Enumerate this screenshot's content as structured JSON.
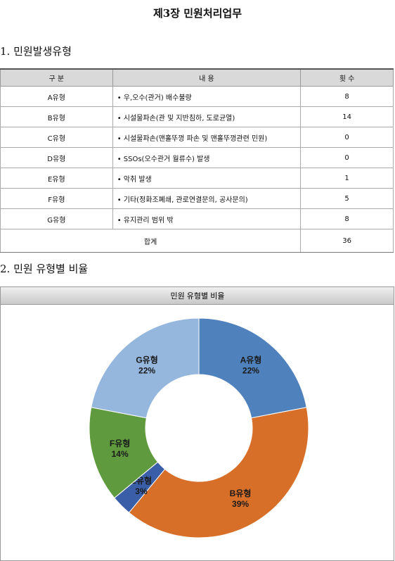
{
  "title": "제3장 민원처리업무",
  "section1": {
    "heading": "1. 민원발생유형",
    "table": {
      "header": [
        "구 분",
        "내 용",
        "횟 수"
      ],
      "rows": [
        [
          "A유형",
          "• 우,오수(관거) 배수불량",
          8
        ],
        [
          "B유형",
          "• 시설물파손(관 및 지반침하, 도로균열)",
          14
        ],
        [
          "C유형",
          "• 시설물파손(맨홀뚜껑 파손 및 맨홀뚜껑관련 민원)",
          0
        ],
        [
          "D유형",
          "• SSOs(오수관거 월류수) 발생",
          0
        ],
        [
          "E유형",
          "• 악취 발생",
          1
        ],
        [
          "F유형",
          "• 기타(정화조폐쇄, 관로연결문의, 공사문의)",
          5
        ],
        [
          "G유형",
          "• 유지관리 범위 밖",
          8
        ]
      ],
      "total": [
        "합계",
        36
      ]
    }
  },
  "section2": {
    "heading": "2. 민원 유형별 비율"
  },
  "chart_data": {
    "type": "donut",
    "title": "민원 유형별 비율",
    "categories": [
      "A유형",
      "B유형",
      "E유형",
      "F유형",
      "G유형"
    ],
    "values": [
      22,
      39,
      3,
      14,
      22
    ],
    "value_labels": [
      "22%",
      "39%",
      "3%",
      "14%",
      "22%"
    ],
    "colors": [
      "#4f81bd",
      "#d86f29",
      "#3a5ea8",
      "#5f9a3e",
      "#95b6dd"
    ]
  }
}
